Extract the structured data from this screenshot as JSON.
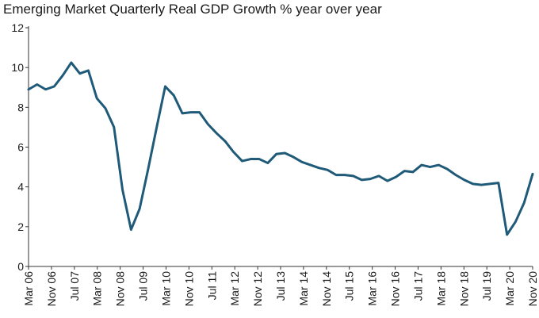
{
  "chart_data": {
    "type": "line",
    "title": "Emerging Market Quarterly Real GDP Growth % year over year",
    "xlabel": "",
    "ylabel": "",
    "ylim": [
      0,
      12
    ],
    "yticks": [
      0,
      2,
      4,
      6,
      8,
      10,
      12
    ],
    "grid": false,
    "legend": "none",
    "line_color": "#1f5a78",
    "x_tick_labels": [
      "Mar 06",
      "Nov 06",
      "Jul 07",
      "Mar 08",
      "Nov 08",
      "Jul 09",
      "Mar 10",
      "Nov 10",
      "Jul 11",
      "Mar 12",
      "Nov 12",
      "Jul 13",
      "Mar 14",
      "Nov 14",
      "Jul 15",
      "Mar 16",
      "Nov 16",
      "Jul 17",
      "Mar 18",
      "Nov 18",
      "Jul 19",
      "Mar 20",
      "Nov 20"
    ],
    "x": [
      "Mar 06",
      "Jun 06",
      "Sep 06",
      "Dec 06",
      "Mar 07",
      "Jun 07",
      "Sep 07",
      "Dec 07",
      "Mar 08",
      "Jun 08",
      "Sep 08",
      "Dec 08",
      "Mar 09",
      "Jun 09",
      "Sep 09",
      "Dec 09",
      "Mar 10",
      "Jun 10",
      "Sep 10",
      "Dec 10",
      "Mar 11",
      "Jun 11",
      "Sep 11",
      "Dec 11",
      "Mar 12",
      "Jun 12",
      "Sep 12",
      "Dec 12",
      "Mar 13",
      "Jun 13",
      "Sep 13",
      "Dec 13",
      "Mar 14",
      "Jun 14",
      "Sep 14",
      "Dec 14",
      "Mar 15",
      "Jun 15",
      "Sep 15",
      "Dec 15",
      "Mar 16",
      "Jun 16",
      "Sep 16",
      "Dec 16",
      "Mar 17",
      "Jun 17",
      "Sep 17",
      "Dec 17",
      "Mar 18",
      "Jun 18",
      "Sep 18",
      "Dec 18",
      "Mar 19",
      "Jun 19",
      "Sep 19",
      "Dec 19",
      "Mar 20",
      "Jun 20",
      "Sep 20",
      "Dec 20"
    ],
    "series": [
      {
        "values": [
          8.9,
          9.15,
          8.9,
          9.05,
          9.6,
          10.25,
          9.7,
          9.85,
          8.45,
          7.95,
          7.0,
          3.85,
          1.85,
          2.9,
          4.9,
          7.0,
          9.05,
          8.6,
          7.7,
          7.75,
          7.75,
          7.15,
          6.7,
          6.3,
          5.75,
          5.3,
          5.4,
          5.4,
          5.2,
          5.65,
          5.7,
          5.5,
          5.25,
          5.1,
          4.95,
          4.85,
          4.6,
          4.6,
          4.55,
          4.35,
          4.4,
          4.55,
          4.3,
          4.5,
          4.8,
          4.75,
          5.1,
          5.0,
          5.1,
          4.9,
          4.6,
          4.35,
          4.15,
          4.1,
          4.15,
          4.2,
          1.6,
          2.25,
          3.2,
          4.65
        ]
      }
    ]
  }
}
